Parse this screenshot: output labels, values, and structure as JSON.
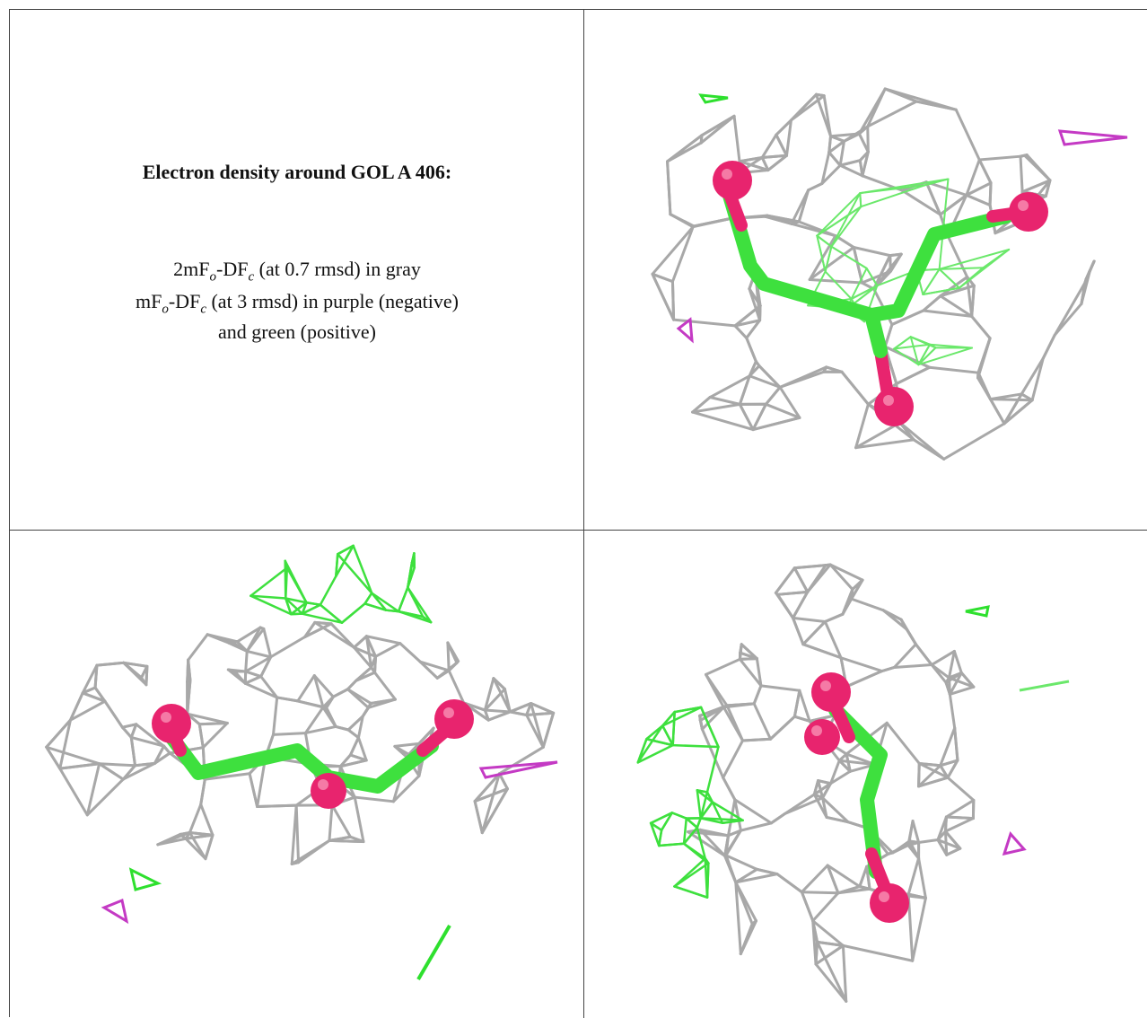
{
  "caption": {
    "title": "Electron density around GOL A 406:",
    "lines": [
      [
        "2mF",
        "o",
        "-DF",
        "c",
        " (at 0.7 rmsd) in gray"
      ],
      [
        "mF",
        "o",
        "-DF",
        "c",
        " (at 3 rmsd) in purple (negative)"
      ],
      [
        "and green (positive)"
      ]
    ]
  }
}
